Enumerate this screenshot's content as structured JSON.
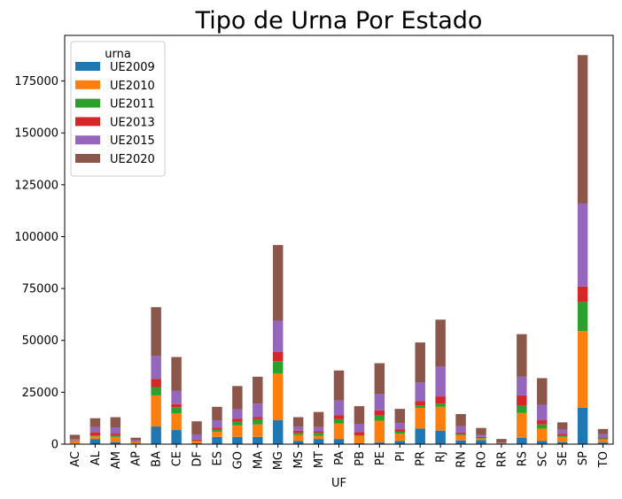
{
  "chart_data": {
    "type": "bar",
    "stacked": true,
    "title": "Tipo de Urna Por Estado",
    "xlabel": "UF",
    "ylabel": "",
    "ylim": [
      0,
      197000
    ],
    "yticks": [
      0,
      25000,
      50000,
      75000,
      100000,
      125000,
      150000,
      175000
    ],
    "grid": false,
    "legend": {
      "title": "urna",
      "placement": "top-left"
    },
    "categories": [
      "AC",
      "AL",
      "AM",
      "AP",
      "BA",
      "CE",
      "DF",
      "ES",
      "GO",
      "MA",
      "MG",
      "MS",
      "MT",
      "PA",
      "PB",
      "PE",
      "PI",
      "PR",
      "RJ",
      "RN",
      "RO",
      "RR",
      "RS",
      "SC",
      "SE",
      "SP",
      "TO"
    ],
    "series": [
      {
        "name": "UE2009",
        "color": "#1f77b4",
        "values": [
          300,
          2500,
          1000,
          200,
          8500,
          6800,
          500,
          3500,
          3500,
          3500,
          11500,
          1500,
          2500,
          2500,
          500,
          800,
          1500,
          7500,
          6500,
          1800,
          2000,
          200,
          3000,
          1500,
          1000,
          17500,
          800
        ]
      },
      {
        "name": "UE2010",
        "color": "#ff7f0e",
        "values": [
          1200,
          1200,
          2500,
          800,
          15000,
          8000,
          1000,
          2500,
          5500,
          6000,
          22500,
          3000,
          1500,
          7500,
          3500,
          10500,
          3500,
          10000,
          11500,
          2500,
          800,
          100,
          12000,
          6000,
          2500,
          37000,
          1500
        ]
      },
      {
        "name": "UE2011",
        "color": "#2ca02c",
        "values": [
          100,
          500,
          800,
          100,
          4000,
          3000,
          200,
          1000,
          1800,
          2500,
          6000,
          1000,
          1500,
          2000,
          300,
          2500,
          1000,
          1200,
          1500,
          500,
          200,
          100,
          3500,
          2000,
          500,
          14000,
          500
        ]
      },
      {
        "name": "UE2013",
        "color": "#d62728",
        "values": [
          200,
          1500,
          800,
          200,
          4000,
          1500,
          500,
          1000,
          1500,
          1000,
          4500,
          1000,
          700,
          2000,
          1500,
          2500,
          1200,
          2000,
          3500,
          800,
          500,
          100,
          5000,
          2000,
          1000,
          7500,
          500
        ]
      },
      {
        "name": "UE2015",
        "color": "#9467bd",
        "values": [
          600,
          2500,
          3000,
          500,
          11000,
          6500,
          2500,
          3500,
          4500,
          6500,
          15000,
          2000,
          2000,
          7000,
          4000,
          8000,
          3000,
          9000,
          14500,
          3000,
          1000,
          200,
          9000,
          7500,
          2000,
          40000,
          1500
        ]
      },
      {
        "name": "UE2020",
        "color": "#8c564b",
        "values": [
          2100,
          4300,
          4900,
          1300,
          23500,
          16200,
          6300,
          6500,
          11200,
          13000,
          36500,
          4500,
          7300,
          14500,
          8500,
          14700,
          6800,
          19300,
          22500,
          5900,
          3300,
          1800,
          20500,
          12800,
          3500,
          71500,
          2500
        ]
      }
    ]
  }
}
